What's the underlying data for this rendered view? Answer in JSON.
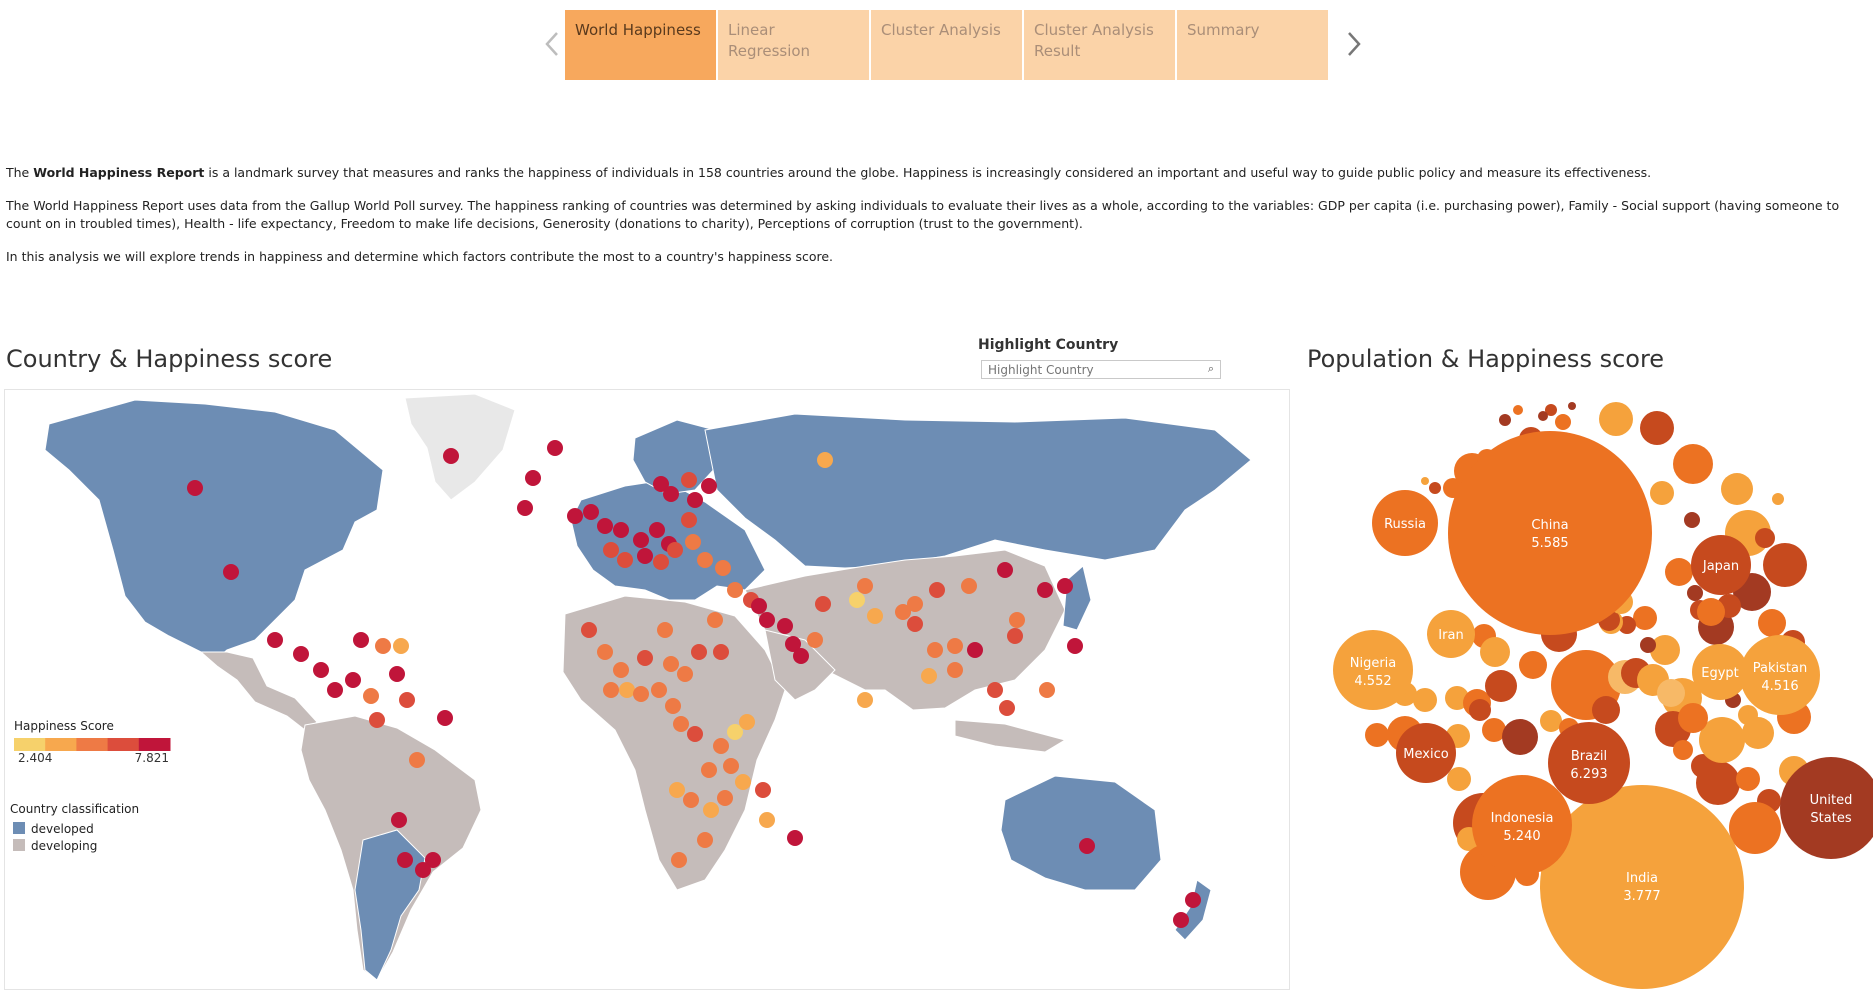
{
  "nav": {
    "prev_icon": "chevron-left-icon",
    "next_icon": "chevron-right-icon",
    "prev_color": "#bdbdbd",
    "next_color": "#777777",
    "tabs": [
      {
        "label": "World Happiness",
        "active": true
      },
      {
        "label": "Linear Regression",
        "active": false
      },
      {
        "label": "Cluster Analysis",
        "active": false
      },
      {
        "label": "Cluster Analysis Result",
        "active": false
      },
      {
        "label": "Summary",
        "active": false
      }
    ]
  },
  "intro": {
    "p1_prefix": "The ",
    "p1_bold": "World Happiness Report",
    "p1_rest": " is a landmark survey that measures and ranks the happiness of individuals in 158 countries around the globe. Happiness is increasingly considered an important and useful way to guide public policy and measure its effectiveness.",
    "p2": "The World Happiness Report uses data from the Gallup World Poll survey. The happiness ranking of countries was determined by asking individuals to evaluate their lives as a whole, according to the variables: GDP per capita (i.e. purchasing power), Family - Social support (having someone to count on in troubled times), Health - life expectancy, Freedom to make life decisions, Generosity (donations to charity), Perceptions of corruption (trust to the government).",
    "p3": "In this analysis we will explore trends in happiness and determine which factors contribute the most to a country's happiness score."
  },
  "map": {
    "title": "Country & Happiness score",
    "highlight_label": "Highlight Country",
    "highlight_placeholder": "Highlight Country",
    "search_icon": "search-icon",
    "colors": {
      "developed": "#6d8db4",
      "developing": "#c5bcba",
      "ocean": "#ffffff",
      "greenland": "#e8e8e8"
    },
    "legend": {
      "title": "Happiness Score",
      "min": "2.404",
      "max": "7.821",
      "colors": [
        "#f6d16b",
        "#f7a84e",
        "#ee7a45",
        "#dc4d3c",
        "#c0153a"
      ]
    },
    "classification": {
      "title": "Country classification",
      "items": [
        {
          "label": "developed",
          "color": "#6d8db4"
        },
        {
          "label": "developing",
          "color": "#c5bcba"
        }
      ]
    }
  },
  "bubbles": {
    "title": "Population & Happiness score",
    "labeled": [
      {
        "name": "China",
        "value": "5.585"
      },
      {
        "name": "India",
        "value": "3.777"
      },
      {
        "name": "United States",
        "value": ""
      },
      {
        "name": "Indonesia",
        "value": "5.240"
      },
      {
        "name": "Brazil",
        "value": "6.293"
      },
      {
        "name": "Nigeria",
        "value": "4.552"
      },
      {
        "name": "Pakistan",
        "value": "4.516"
      },
      {
        "name": "Russia",
        "value": ""
      },
      {
        "name": "Mexico",
        "value": ""
      },
      {
        "name": "Japan",
        "value": ""
      },
      {
        "name": "Iran",
        "value": ""
      },
      {
        "name": "Egypt",
        "value": ""
      }
    ]
  }
}
